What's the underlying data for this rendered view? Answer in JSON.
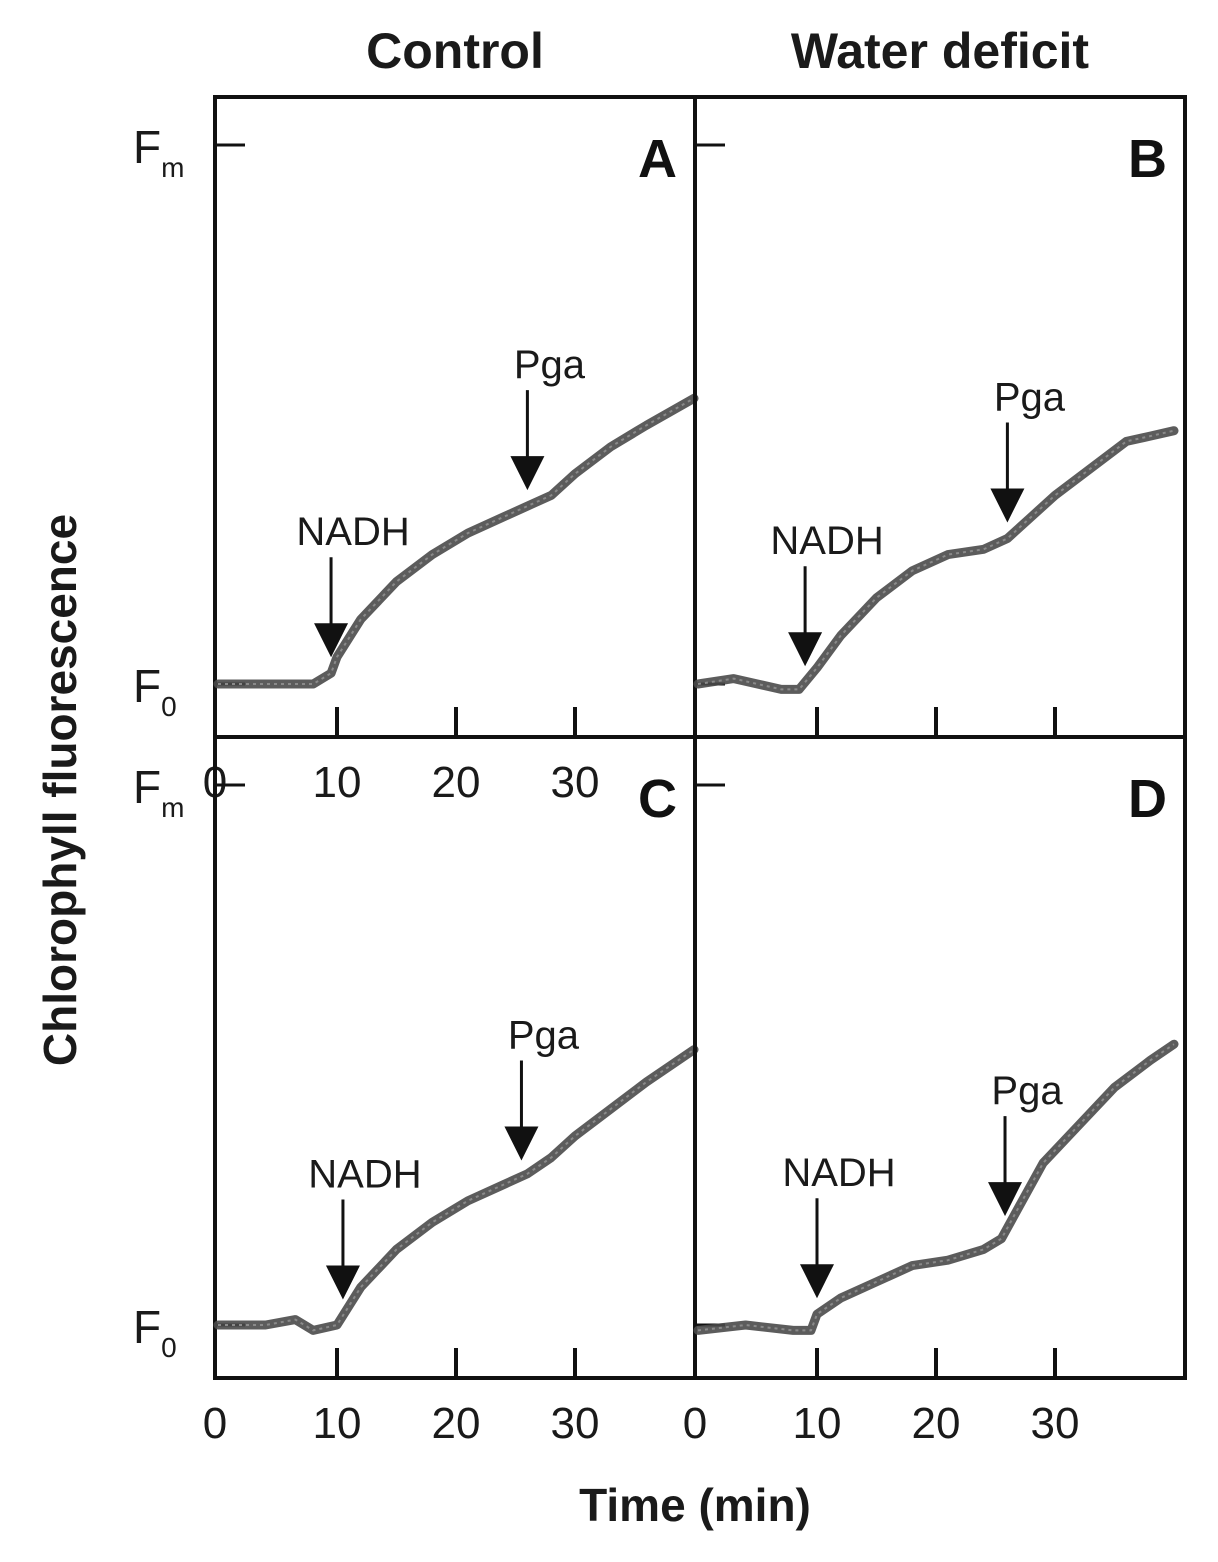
{
  "figure": {
    "column_titles": [
      "Control",
      "Water deficit"
    ],
    "y_title": "Chlorophyll fluorescence",
    "x_title": "Time (min)"
  },
  "chart_data": [
    {
      "type": "line",
      "panel_label": "A",
      "xlim": [
        0,
        40
      ],
      "x_ticks": [
        0,
        10,
        20,
        30
      ],
      "x_tick_labels": [
        "0",
        "10",
        "20",
        "30"
      ],
      "y_tick_labels": [
        {
          "main": "F",
          "sub": "m",
          "value": 1.0
        },
        {
          "main": "F",
          "sub": "0",
          "value": 0.0
        }
      ],
      "ylim": [
        -0.04,
        1.07
      ],
      "series": [
        {
          "x": [
            0,
            4,
            8,
            9.5,
            10,
            12,
            15,
            18,
            21,
            24,
            26,
            28,
            30,
            33,
            36,
            40
          ],
          "y": [
            0.0,
            0.0,
            0.0,
            0.02,
            0.05,
            0.12,
            0.19,
            0.24,
            0.28,
            0.31,
            0.33,
            0.35,
            0.39,
            0.44,
            0.48,
            0.53
          ]
        }
      ],
      "annotations": [
        {
          "label": "NADH",
          "x": 9.5
        },
        {
          "label": "Pga",
          "x": 26
        }
      ]
    },
    {
      "type": "line",
      "panel_label": "B",
      "xlim": [
        0,
        40
      ],
      "x_ticks": [
        0,
        10,
        20,
        30
      ],
      "x_tick_labels": [
        "",
        "",
        "",
        ""
      ],
      "y_tick_labels": [],
      "ylim": [
        -0.04,
        1.07
      ],
      "series": [
        {
          "x": [
            0,
            3,
            5,
            7,
            8.5,
            10,
            12,
            15,
            18,
            21,
            24,
            26,
            28,
            30,
            33,
            36,
            38,
            40
          ],
          "y": [
            0.0,
            0.01,
            0.0,
            -0.01,
            -0.01,
            0.03,
            0.09,
            0.16,
            0.21,
            0.24,
            0.25,
            0.27,
            0.31,
            0.35,
            0.4,
            0.45,
            0.46,
            0.47
          ]
        }
      ],
      "annotations": [
        {
          "label": "NADH",
          "x": 9
        },
        {
          "label": "Pga",
          "x": 26
        }
      ]
    },
    {
      "type": "line",
      "panel_label": "C",
      "xlim": [
        0,
        40
      ],
      "x_ticks": [
        0,
        10,
        20,
        30
      ],
      "x_tick_labels": [
        "0",
        "10",
        "20",
        "30"
      ],
      "y_tick_labels": [
        {
          "main": "F",
          "sub": "m",
          "value": 1.0
        },
        {
          "main": "F",
          "sub": "0",
          "value": 0.0
        }
      ],
      "ylim": [
        -0.04,
        1.07
      ],
      "series": [
        {
          "x": [
            0,
            4,
            6.5,
            8,
            10,
            12,
            15,
            18,
            21,
            24,
            26,
            28,
            30,
            33,
            36,
            40
          ],
          "y": [
            0.0,
            0.0,
            0.01,
            -0.01,
            0.0,
            0.07,
            0.14,
            0.19,
            0.23,
            0.26,
            0.28,
            0.31,
            0.35,
            0.4,
            0.45,
            0.51
          ]
        }
      ],
      "annotations": [
        {
          "label": "NADH",
          "x": 10.5
        },
        {
          "label": "Pga",
          "x": 25.5
        }
      ]
    },
    {
      "type": "line",
      "panel_label": "D",
      "xlim": [
        0,
        40
      ],
      "x_ticks": [
        0,
        10,
        20,
        30
      ],
      "x_tick_labels": [
        "0",
        "10",
        "20",
        "30"
      ],
      "y_tick_labels": [],
      "ylim": [
        -0.04,
        1.07
      ],
      "series": [
        {
          "x": [
            0,
            4,
            8,
            9.5,
            10,
            12,
            15,
            18,
            21,
            24,
            25.5,
            27,
            29,
            32,
            35,
            38,
            40
          ],
          "y": [
            -0.01,
            0.0,
            -0.01,
            -0.01,
            0.02,
            0.05,
            0.08,
            0.11,
            0.12,
            0.14,
            0.16,
            0.22,
            0.3,
            0.37,
            0.44,
            0.49,
            0.52
          ]
        }
      ],
      "annotations": [
        {
          "label": "NADH",
          "x": 10
        },
        {
          "label": "Pga",
          "x": 25.8
        }
      ]
    }
  ]
}
